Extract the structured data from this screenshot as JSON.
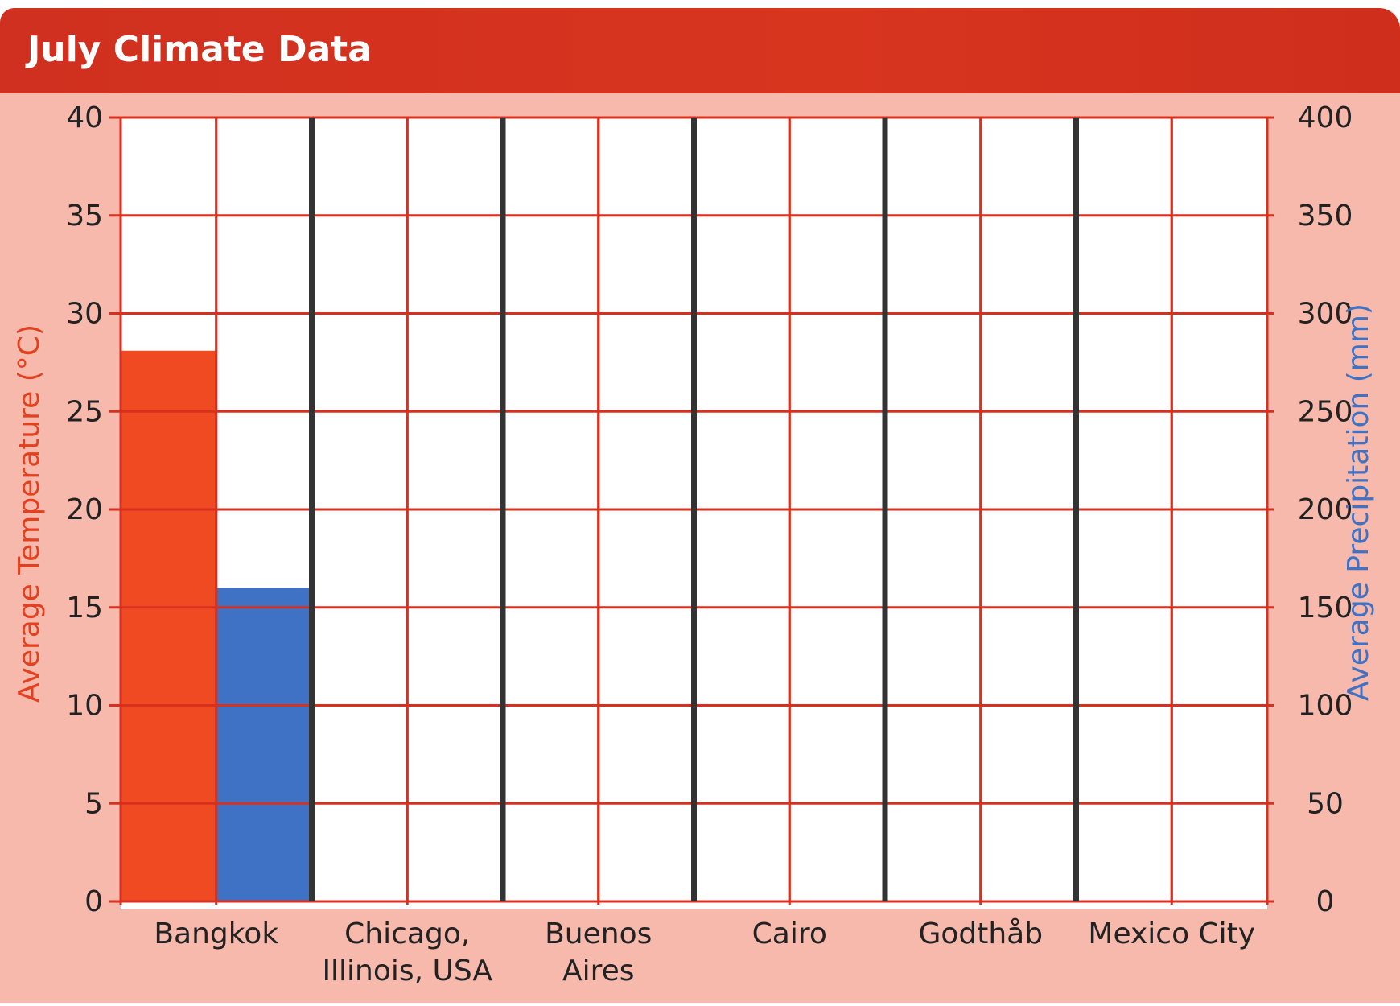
{
  "chart_data": {
    "type": "bar",
    "title": "July Climate Data",
    "categories": [
      "Bangkok",
      "Chicago, Illinois, USA",
      "Buenos Aires",
      "Cairo",
      "Godthåb",
      "Mexico City"
    ],
    "category_label_lines": [
      [
        "Bangkok"
      ],
      [
        "Chicago,",
        "Illinois, USA"
      ],
      [
        "Buenos",
        "Aires"
      ],
      [
        "Cairo"
      ],
      [
        "Godthåb"
      ],
      [
        "Mexico City"
      ]
    ],
    "series": [
      {
        "values": [
          28.1,
          null,
          null,
          null,
          null,
          null
        ],
        "axis": "left",
        "color": "#f04a23"
      },
      {
        "values": [
          160,
          null,
          null,
          null,
          null,
          null
        ],
        "axis": "right",
        "color": "#3f72c4"
      }
    ],
    "ylabel": "Average Temperature (°C)",
    "ylabel_color": "#e2401f",
    "ylim": [
      0,
      40
    ],
    "yticks": [
      0,
      5,
      10,
      15,
      20,
      25,
      30,
      35,
      40
    ],
    "y2label": "Average Precipitation (mm)",
    "y2label_color": "#3f72c4",
    "y2lim": [
      0,
      400
    ],
    "y2ticks": [
      0,
      50,
      100,
      150,
      200,
      250,
      300,
      350,
      400
    ],
    "grid": true,
    "grid_color": "#d8301f",
    "divider_color": "#333333",
    "plot_background": "#ffffff"
  },
  "colors": {
    "header": "#d3321f",
    "card_background": "#f6b9ac",
    "title_text": "#ffffff"
  }
}
